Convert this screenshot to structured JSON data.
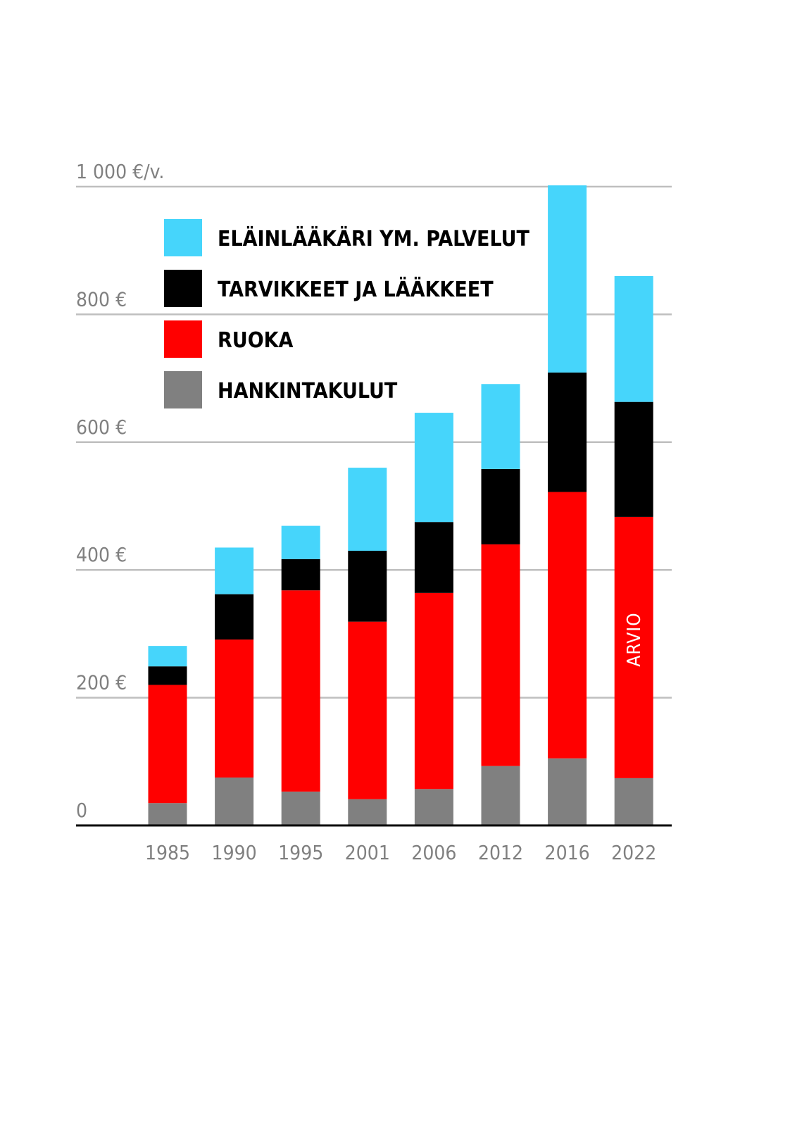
{
  "chart_data": {
    "type": "bar",
    "stacked": true,
    "categories": [
      "1985",
      "1990",
      "1995",
      "2001",
      "2006",
      "2012",
      "2016",
      "2022"
    ],
    "series": [
      {
        "name": "HANKINTAKULUT",
        "color": "#808080",
        "values": [
          35,
          75,
          53,
          41,
          57,
          93,
          105,
          74
        ]
      },
      {
        "name": "RUOKA",
        "color": "#ff0000",
        "values": [
          185,
          216,
          315,
          278,
          307,
          347,
          417,
          409
        ]
      },
      {
        "name": "TARVIKKEET JA LÄÄKKEET",
        "color": "#000000",
        "values": [
          29,
          71,
          49,
          111,
          111,
          118,
          187,
          180
        ]
      },
      {
        "name": "ELÄINLÄÄKÄRI YM. PALVELUT",
        "color": "#46d5fb",
        "values": [
          32,
          73,
          52,
          130,
          171,
          133,
          293,
          197
        ]
      }
    ],
    "y_ticks": [
      {
        "value": 0,
        "label": "0"
      },
      {
        "value": 200,
        "label": "200 €"
      },
      {
        "value": 400,
        "label": "400 €"
      },
      {
        "value": 600,
        "label": "600 €"
      },
      {
        "value": 800,
        "label": "800 €"
      },
      {
        "value": 1000,
        "label": "1 000 €/v."
      }
    ],
    "ylim": [
      0,
      1000
    ],
    "grid": true,
    "legend_placement": "top-left",
    "annotation": {
      "category": "2022",
      "text": "ARVIO"
    },
    "axis_color": "#000000",
    "grid_color": "#bfbfbf",
    "tick_color": "#808080"
  }
}
